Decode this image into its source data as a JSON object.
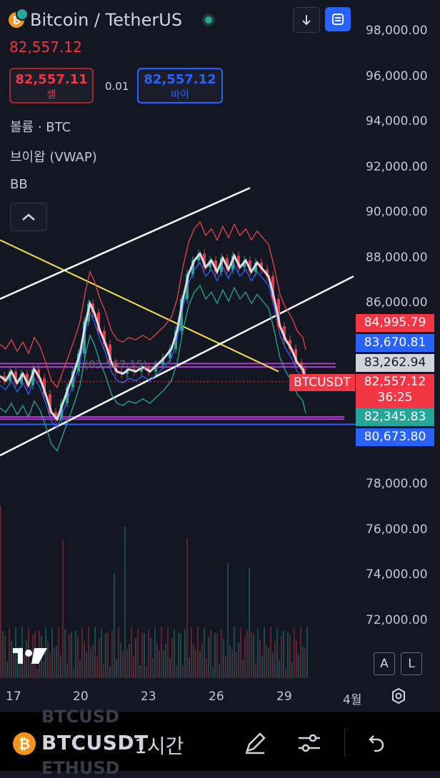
{
  "header": {
    "title": "Bitcoin / TetherUS",
    "last_price": "82,557.12",
    "sell": {
      "price": "82,557.11",
      "label": "셀"
    },
    "spread": "0.01",
    "buy": {
      "price": "82,557.12",
      "label": "바이"
    }
  },
  "indicators": [
    "볼륨 · BTC",
    "브이왑 (VWAP)",
    "BB"
  ],
  "chart_data": {
    "type": "candlestick",
    "symbol": "BTCUSDT",
    "y_ticks": [
      "98,000.00",
      "96,000.00",
      "94,000.00",
      "92,000.00",
      "90,000.00",
      "88,000.00",
      "86,000.00",
      "78,000.00",
      "76,000.00",
      "74,000.00",
      "72,000.00"
    ],
    "x_ticks": [
      "17",
      "20",
      "23",
      "26",
      "29",
      "4월"
    ],
    "ylim": [
      70000,
      99000
    ],
    "price_tags": [
      {
        "value": "84,995.79",
        "color": "#f23645"
      },
      {
        "value": "83,670.81",
        "color": "#2962ff"
      },
      {
        "value": "83,262.94",
        "color": "#d1d4dc"
      },
      {
        "value": "82,557.12",
        "color": "#f23645",
        "countdown": "36:25"
      },
      {
        "value": "82,345.83",
        "color": "#26a69a"
      },
      {
        "value": "80,673.80",
        "color": "#2962ff"
      }
    ],
    "symbol_tag": "BTCUSDT",
    "faded_label": "(83,567.15)",
    "price_path": [
      [
        0,
        82800
      ],
      [
        8,
        82600
      ],
      [
        16,
        83000
      ],
      [
        24,
        82500
      ],
      [
        32,
        82900
      ],
      [
        40,
        82400
      ],
      [
        48,
        83100
      ],
      [
        56,
        82700
      ],
      [
        64,
        82000
      ],
      [
        72,
        81200
      ],
      [
        80,
        80900
      ],
      [
        88,
        81600
      ],
      [
        96,
        82300
      ],
      [
        104,
        83000
      ],
      [
        112,
        83800
      ],
      [
        120,
        85200
      ],
      [
        126,
        86000
      ],
      [
        132,
        85600
      ],
      [
        140,
        84800
      ],
      [
        148,
        84200
      ],
      [
        156,
        83400
      ],
      [
        164,
        83000
      ],
      [
        172,
        82900
      ],
      [
        180,
        83100
      ],
      [
        190,
        83000
      ],
      [
        200,
        83200
      ],
      [
        210,
        83000
      ],
      [
        220,
        83300
      ],
      [
        230,
        83600
      ],
      [
        240,
        84000
      ],
      [
        248,
        84800
      ],
      [
        256,
        86200
      ],
      [
        264,
        87300
      ],
      [
        272,
        87900
      ],
      [
        280,
        88200
      ],
      [
        288,
        87600
      ],
      [
        296,
        87900
      ],
      [
        304,
        87400
      ],
      [
        312,
        88000
      ],
      [
        320,
        87500
      ],
      [
        328,
        88100
      ],
      [
        336,
        87600
      ],
      [
        344,
        87900
      ],
      [
        352,
        87400
      ],
      [
        360,
        87800
      ],
      [
        368,
        87500
      ],
      [
        376,
        87200
      ],
      [
        384,
        86200
      ],
      [
        392,
        85000
      ],
      [
        400,
        84400
      ],
      [
        408,
        84000
      ],
      [
        416,
        83400
      ],
      [
        424,
        83100
      ],
      [
        428,
        82560
      ]
    ],
    "trend_lines": {
      "yellow": [
        [
          0,
          88800
        ],
        [
          390,
          83000
        ]
      ],
      "white_upper": [
        [
          0,
          86200
        ],
        [
          350,
          91100
        ]
      ],
      "white_lower": [
        [
          0,
          79300
        ],
        [
          495,
          87200
        ]
      ]
    },
    "horizontal_lines": [
      {
        "value": 83350,
        "color": "#b23ad4"
      },
      {
        "value": 83200,
        "color": "#b23ad4"
      },
      {
        "value": 81000,
        "color": "#b23ad4"
      },
      {
        "value": 80900,
        "color": "#b23ad4"
      },
      {
        "value": 80673.8,
        "color": "#2962ff"
      }
    ]
  },
  "controls": {
    "auto_label": "A",
    "log_label": "L"
  },
  "bottom_bar": {
    "symbol": "BTCUSDT",
    "ghost_above": "BTCUSD",
    "ghost_below": "ETHUSD",
    "interval": "1시간"
  },
  "colors": {
    "bg": "#131722",
    "up": "#26a69a",
    "down": "#f23645",
    "accent": "#2962ff"
  }
}
